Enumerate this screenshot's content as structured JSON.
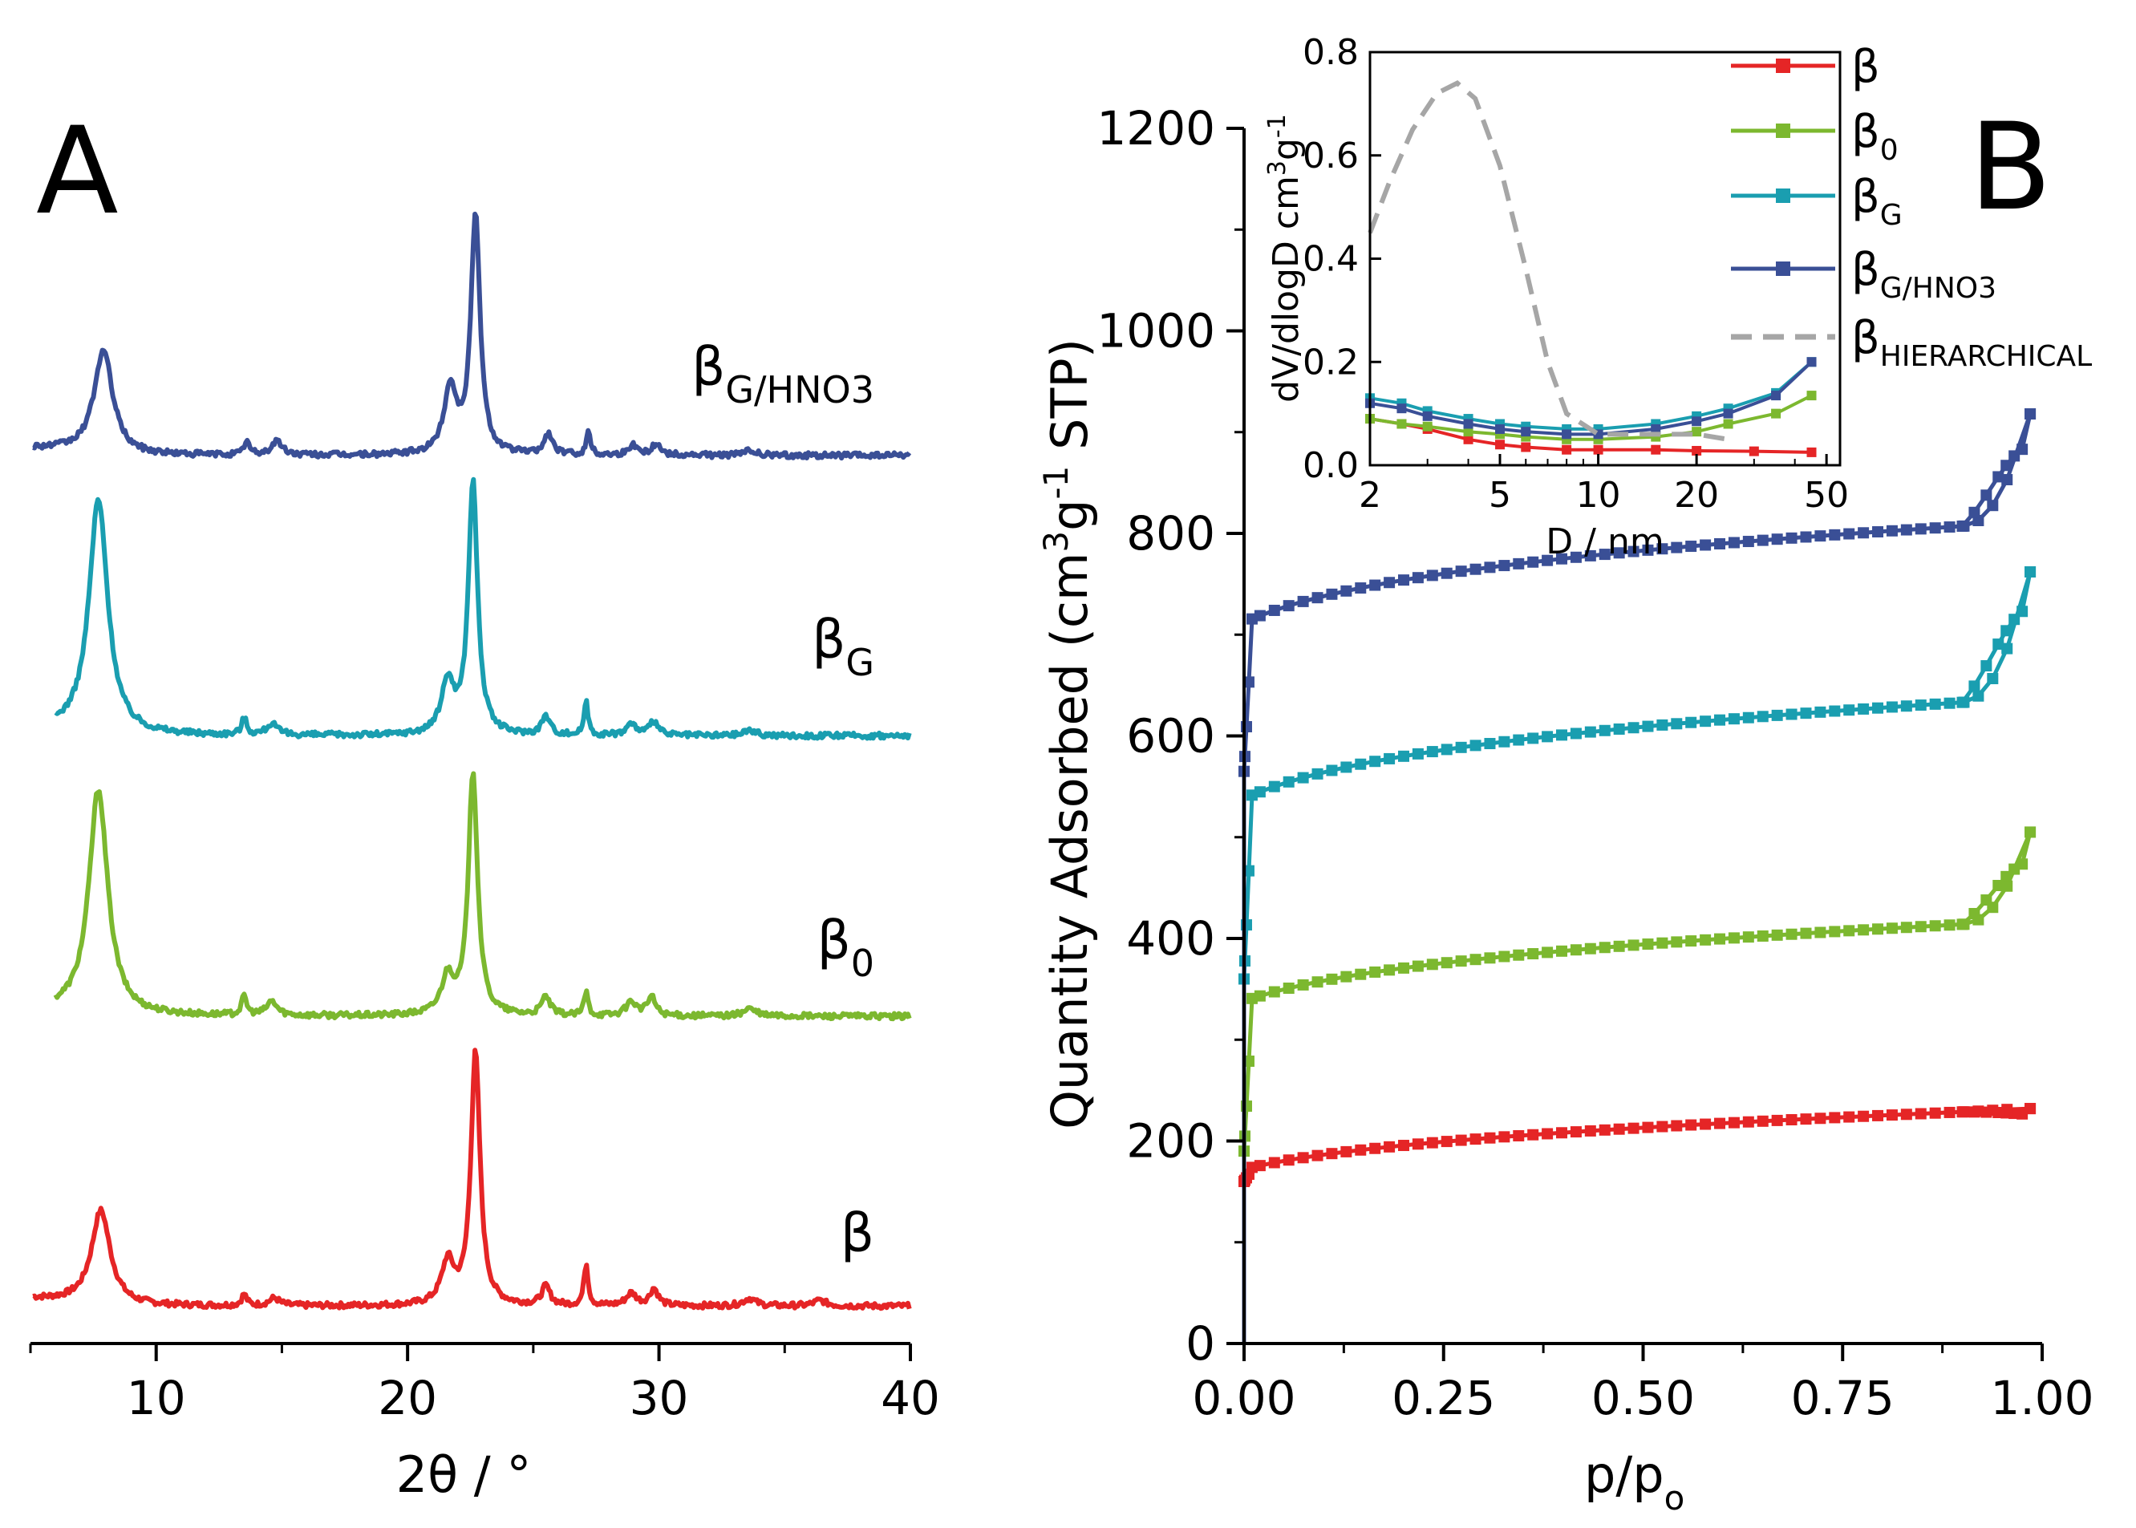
{
  "colors": {
    "beta": "#e52526",
    "beta0": "#7cb82f",
    "betaG": "#1a9eb0",
    "betaGHNO3": "#3a4f96",
    "hier": "#a6a6a6",
    "axis": "#000000"
  },
  "chart_data": [
    {
      "type": "line",
      "panel": "A",
      "title": "",
      "xlabel": "2θ / °",
      "ylabel": "",
      "xlim": [
        5,
        40
      ],
      "x_ticks": [
        "10",
        "20",
        "30",
        "40"
      ],
      "y_axis_visible": false,
      "series": [
        {
          "name": "β",
          "label": {
            "base": "β",
            "sub": ""
          },
          "color_key": "beta",
          "baseline": 0.0,
          "peaks": [
            [
              7.8,
              1.0,
              0.45
            ],
            [
              13.5,
              0.12,
              0.12
            ],
            [
              14.7,
              0.08,
              0.25
            ],
            [
              21.6,
              0.45,
              0.3
            ],
            [
              22.7,
              2.7,
              0.22
            ],
            [
              25.5,
              0.2,
              0.2
            ],
            [
              27.1,
              0.45,
              0.1
            ],
            [
              28.9,
              0.13,
              0.25
            ],
            [
              29.8,
              0.18,
              0.2
            ],
            [
              33.6,
              0.08,
              0.3
            ],
            [
              36.4,
              0.06,
              0.3
            ]
          ],
          "x_start": 5.1
        },
        {
          "name": "β0",
          "label": {
            "base": "β",
            "sub": "0"
          },
          "color_key": "beta0",
          "baseline": 3.1,
          "peaks": [
            [
              7.7,
              2.4,
              0.45
            ],
            [
              13.5,
              0.2,
              0.12
            ],
            [
              14.6,
              0.15,
              0.25
            ],
            [
              21.6,
              0.4,
              0.3
            ],
            [
              22.6,
              2.6,
              0.22
            ],
            [
              25.5,
              0.2,
              0.2
            ],
            [
              27.1,
              0.25,
              0.1
            ],
            [
              28.9,
              0.15,
              0.25
            ],
            [
              29.7,
              0.2,
              0.2
            ],
            [
              33.6,
              0.08,
              0.3
            ]
          ],
          "x_start": 6.0
        },
        {
          "name": "βG",
          "label": {
            "base": "β",
            "sub": "G"
          },
          "color_key": "betaG",
          "baseline": 6.1,
          "peaks": [
            [
              7.7,
              2.5,
              0.45
            ],
            [
              13.5,
              0.18,
              0.12
            ],
            [
              14.6,
              0.12,
              0.25
            ],
            [
              21.6,
              0.55,
              0.3
            ],
            [
              22.6,
              2.7,
              0.22
            ],
            [
              25.5,
              0.2,
              0.2
            ],
            [
              27.1,
              0.35,
              0.1
            ],
            [
              28.9,
              0.12,
              0.25
            ],
            [
              29.8,
              0.15,
              0.2
            ],
            [
              33.6,
              0.06,
              0.3
            ]
          ],
          "x_start": 6.0
        },
        {
          "name": "βG/HNO3",
          "label": {
            "base": "β",
            "sub": "G/HNO3"
          },
          "color_key": "betaGHNO3",
          "baseline": 9.1,
          "peaks": [
            [
              7.9,
              1.1,
              0.45
            ],
            [
              13.6,
              0.15,
              0.12
            ],
            [
              14.8,
              0.15,
              0.25
            ],
            [
              21.7,
              0.7,
              0.3
            ],
            [
              22.7,
              2.55,
              0.22
            ],
            [
              25.6,
              0.22,
              0.2
            ],
            [
              27.2,
              0.25,
              0.1
            ],
            [
              29.0,
              0.1,
              0.25
            ],
            [
              29.9,
              0.12,
              0.2
            ],
            [
              33.6,
              0.05,
              0.3
            ]
          ],
          "x_start": 5.1
        }
      ],
      "ylim": [
        -0.4,
        12.6
      ]
    },
    {
      "type": "line",
      "panel": "B",
      "title": "",
      "xlabel": "p/p",
      "xlabel_sub": "o",
      "ylabel_parts": [
        "Quantity Adsorbed (cm",
        "3",
        "g",
        "-1",
        " STP)"
      ],
      "xlim": [
        0,
        1
      ],
      "ylim": [
        0,
        1200
      ],
      "x_ticks": [
        "0.00",
        "0.25",
        "0.50",
        "0.75",
        "1.00"
      ],
      "y_ticks": [
        "0",
        "200",
        "400",
        "600",
        "800",
        "1000",
        "1200"
      ],
      "series": [
        {
          "name": "β",
          "color_key": "beta",
          "q0": 160,
          "q_plateau": 172,
          "slope": 45,
          "q_end": 232,
          "q_desorb_rise": 225
        },
        {
          "name": "β0",
          "color_key": "beta0",
          "q0": 190,
          "q_plateau": 338,
          "slope": 65,
          "q_end": 505,
          "q_desorb_rise": 470
        },
        {
          "name": "βG",
          "color_key": "betaG",
          "q0": 360,
          "q_plateau": 538,
          "slope": 85,
          "q_end": 762,
          "q_desorb_rise": 720
        },
        {
          "name": "βG/HNO3",
          "color_key": "betaGHNO3",
          "q0": 565,
          "q_plateau": 712,
          "slope": 85,
          "q_end": 918,
          "q_desorb_rise": 880
        }
      ]
    },
    {
      "type": "line",
      "panel": "B-inset",
      "title": "",
      "xlabel": "D / nm",
      "ylabel_parts": [
        "dV/dlogD cm",
        "3",
        "g",
        "-1"
      ],
      "x_scale": "log",
      "xlim": [
        2,
        55
      ],
      "ylim": [
        0,
        0.8
      ],
      "x_ticks": [
        "2",
        "5",
        "10",
        "20",
        "50"
      ],
      "x_tick_values": [
        2,
        5,
        10,
        20,
        50
      ],
      "y_ticks": [
        "0.0",
        "0.2",
        "0.4",
        "0.6",
        "0.8"
      ],
      "series": [
        {
          "name": "β",
          "color_key": "beta",
          "dashed": false,
          "points": [
            [
              2,
              0.09
            ],
            [
              2.5,
              0.08
            ],
            [
              3,
              0.07
            ],
            [
              4,
              0.05
            ],
            [
              5,
              0.04
            ],
            [
              6,
              0.035
            ],
            [
              8,
              0.03
            ],
            [
              10,
              0.03
            ],
            [
              15,
              0.03
            ],
            [
              20,
              0.028
            ],
            [
              30,
              0.027
            ],
            [
              45,
              0.025
            ]
          ]
        },
        {
          "name": "β0",
          "color_key": "beta0",
          "dashed": false,
          "points": [
            [
              2,
              0.09
            ],
            [
              2.5,
              0.08
            ],
            [
              3,
              0.075
            ],
            [
              4,
              0.065
            ],
            [
              5,
              0.06
            ],
            [
              6,
              0.055
            ],
            [
              8,
              0.05
            ],
            [
              10,
              0.05
            ],
            [
              15,
              0.055
            ],
            [
              20,
              0.065
            ],
            [
              25,
              0.08
            ],
            [
              35,
              0.1
            ],
            [
              45,
              0.135
            ]
          ]
        },
        {
          "name": "βG",
          "color_key": "betaG",
          "dashed": false,
          "points": [
            [
              2,
              0.13
            ],
            [
              2.5,
              0.12
            ],
            [
              3,
              0.105
            ],
            [
              4,
              0.09
            ],
            [
              5,
              0.08
            ],
            [
              6,
              0.075
            ],
            [
              8,
              0.07
            ],
            [
              10,
              0.07
            ],
            [
              15,
              0.08
            ],
            [
              20,
              0.095
            ],
            [
              25,
              0.11
            ],
            [
              35,
              0.14
            ],
            [
              45,
              0.2
            ]
          ]
        },
        {
          "name": "βG/HNO3",
          "color_key": "betaGHNO3",
          "dashed": false,
          "points": [
            [
              2,
              0.12
            ],
            [
              2.5,
              0.11
            ],
            [
              3,
              0.095
            ],
            [
              4,
              0.08
            ],
            [
              5,
              0.07
            ],
            [
              6,
              0.065
            ],
            [
              8,
              0.06
            ],
            [
              10,
              0.06
            ],
            [
              15,
              0.07
            ],
            [
              20,
              0.085
            ],
            [
              25,
              0.1
            ],
            [
              35,
              0.135
            ],
            [
              45,
              0.2
            ]
          ]
        },
        {
          "name": "βHIERARCHICAL",
          "color_key": "hier",
          "dashed": true,
          "points": [
            [
              2,
              0.45
            ],
            [
              2.3,
              0.55
            ],
            [
              2.7,
              0.65
            ],
            [
              3.2,
              0.72
            ],
            [
              3.7,
              0.74
            ],
            [
              4.2,
              0.71
            ],
            [
              5,
              0.58
            ],
            [
              6,
              0.38
            ],
            [
              7,
              0.2
            ],
            [
              8,
              0.1
            ],
            [
              10,
              0.06
            ],
            [
              15,
              0.06
            ],
            [
              20,
              0.06
            ],
            [
              25,
              0.05
            ]
          ]
        }
      ]
    }
  ],
  "legend": [
    {
      "base": "β",
      "sub": "",
      "color_key": "beta",
      "dashed": false
    },
    {
      "base": "β",
      "sub": "0",
      "color_key": "beta0",
      "dashed": false
    },
    {
      "base": "β",
      "sub": "G",
      "color_key": "betaG",
      "dashed": false
    },
    {
      "base": "β",
      "sub": "G/HNO3",
      "color_key": "betaGHNO3",
      "dashed": false
    },
    {
      "base": "β",
      "sub": "HIERARCHICAL",
      "color_key": "hier",
      "dashed": true
    }
  ],
  "panel_labels": {
    "a": "A",
    "b": "B"
  }
}
